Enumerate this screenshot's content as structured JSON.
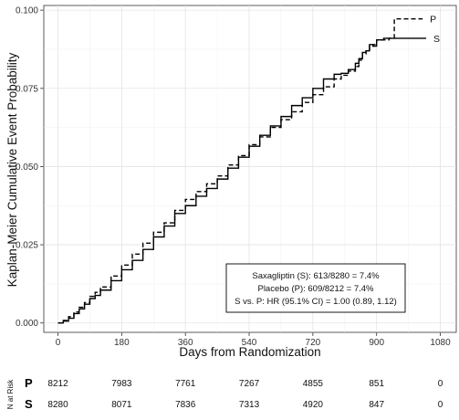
{
  "chart_data": {
    "type": "line",
    "xlabel": "Days from Randomization",
    "ylabel": "Kaplan-Meier Cumulative Event Probability",
    "xlim": [
      -40,
      1125
    ],
    "ylim": [
      -0.003,
      0.1015
    ],
    "x_ticks": [
      0,
      180,
      360,
      540,
      720,
      900,
      1080
    ],
    "y_ticks": [
      0.0,
      0.025,
      0.05,
      0.075,
      0.1
    ],
    "y_tick_labels": [
      "0.000",
      "0.025",
      "0.050",
      "0.075",
      "0.100"
    ],
    "grid": true,
    "series": [
      {
        "name": "P",
        "line_style": "dashed",
        "color": "#000000",
        "x": [
          0,
          15,
          30,
          45,
          60,
          75,
          90,
          105,
          120,
          150,
          180,
          210,
          240,
          270,
          300,
          330,
          360,
          390,
          420,
          450,
          480,
          510,
          540,
          570,
          600,
          630,
          660,
          690,
          720,
          750,
          780,
          800,
          820,
          840,
          850,
          860,
          870,
          880,
          890,
          900,
          920,
          935,
          950,
          970,
          990,
          1010,
          1030
        ],
        "y": [
          0.0,
          0.0008,
          0.002,
          0.0035,
          0.005,
          0.0065,
          0.0085,
          0.0098,
          0.0115,
          0.015,
          0.0185,
          0.022,
          0.0255,
          0.029,
          0.032,
          0.036,
          0.0395,
          0.042,
          0.0445,
          0.047,
          0.0505,
          0.0535,
          0.057,
          0.0595,
          0.0625,
          0.065,
          0.0675,
          0.0705,
          0.073,
          0.0755,
          0.078,
          0.0792,
          0.0805,
          0.082,
          0.084,
          0.086,
          0.087,
          0.0885,
          0.089,
          0.0905,
          0.0905,
          0.091,
          0.0972,
          0.0972,
          0.0972,
          0.0972,
          0.0972
        ]
      },
      {
        "name": "S",
        "line_style": "solid",
        "color": "#000000",
        "x": [
          0,
          15,
          30,
          45,
          60,
          75,
          90,
          105,
          120,
          150,
          180,
          210,
          240,
          270,
          300,
          330,
          360,
          390,
          420,
          450,
          480,
          510,
          540,
          570,
          600,
          630,
          660,
          690,
          720,
          750,
          780,
          800,
          820,
          840,
          850,
          860,
          870,
          880,
          890,
          900,
          920,
          950,
          980,
          1010,
          1040
        ],
        "y": [
          0.0,
          0.0006,
          0.0015,
          0.003,
          0.0045,
          0.006,
          0.0078,
          0.0088,
          0.0105,
          0.0135,
          0.017,
          0.02,
          0.0235,
          0.0275,
          0.031,
          0.035,
          0.0375,
          0.0405,
          0.043,
          0.046,
          0.0495,
          0.053,
          0.0565,
          0.06,
          0.063,
          0.066,
          0.0695,
          0.072,
          0.075,
          0.078,
          0.0795,
          0.0798,
          0.081,
          0.083,
          0.0845,
          0.0865,
          0.087,
          0.089,
          0.0885,
          0.0905,
          0.091,
          0.091,
          0.091,
          0.091,
          0.091
        ]
      }
    ],
    "legend_box": {
      "lines": [
        "Saxagliptin (S): 613/8280 = 7.4%",
        "Placebo (P): 609/8212 = 7.4%",
        "S vs. P: HR (95.1% CI) = 1.00 (0.89, 1.12)"
      ],
      "placement": "bottom-right"
    },
    "number_at_risk": {
      "title": "N at Risk",
      "times": [
        0,
        180,
        360,
        540,
        720,
        900,
        1080
      ],
      "rows": [
        {
          "group": "P",
          "counts": [
            "8212",
            "7983",
            "7761",
            "7267",
            "4855",
            "851",
            "0"
          ]
        },
        {
          "group": "S",
          "counts": [
            "8280",
            "8071",
            "7836",
            "7313",
            "4920",
            "847",
            "0"
          ]
        }
      ]
    }
  }
}
